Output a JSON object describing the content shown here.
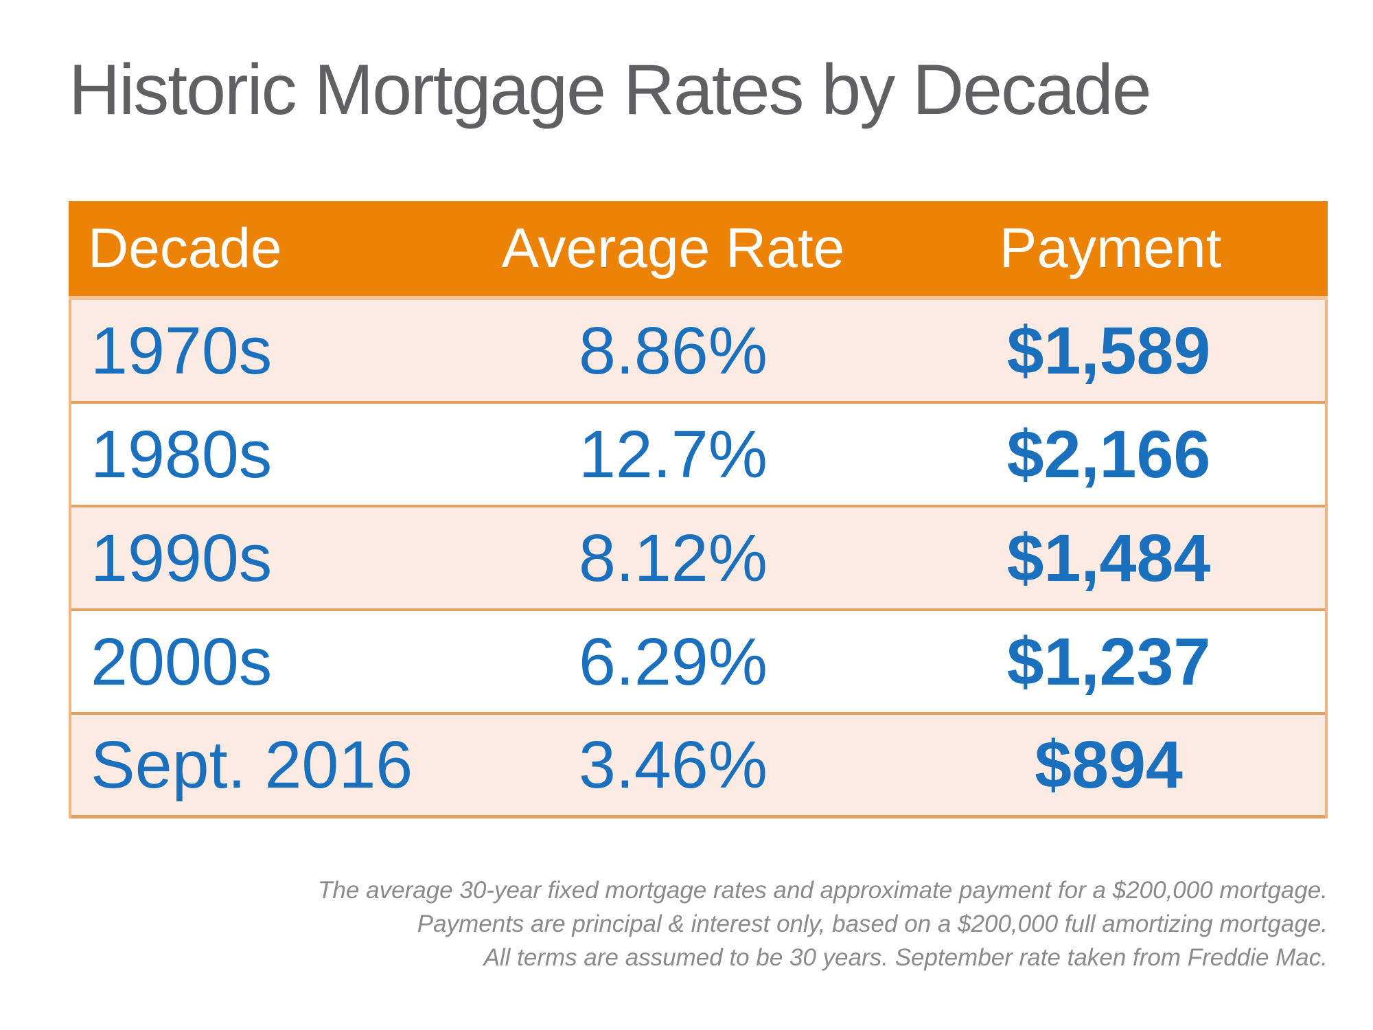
{
  "title": {
    "text": "Historic Mortgage Rates by Decade",
    "color": "#606062"
  },
  "table": {
    "columns": [
      "Decade",
      "Average Rate",
      "Payment"
    ],
    "rows": [
      {
        "decade": "1970s",
        "rate": "8.86%",
        "payment": "$1,589"
      },
      {
        "decade": "1980s",
        "rate": "12.7%",
        "payment": "$2,166"
      },
      {
        "decade": "1990s",
        "rate": "8.12%",
        "payment": "$1,484"
      },
      {
        "decade": "2000s",
        "rate": "6.29%",
        "payment": "$1,237"
      },
      {
        "decade": "Sept. 2016",
        "rate": "3.46%",
        "payment": "$894"
      }
    ],
    "colors": {
      "header_background": "#ED8306",
      "header_text": "#ffffff",
      "row_pink": "#FBEBE3",
      "row_white": "#ffffff",
      "row_divider": "#E3A063",
      "header_divider": "#F4C398",
      "side_border": "#F2B27E",
      "cell_text_blue": "#1B70BE"
    }
  },
  "footnote": {
    "lines": [
      "The average 30-year fixed mortgage rates and approximate payment for a $200,000 mortgage.",
      "Payments are principal & interest only, based on a $200,000 full amortizing mortgage.",
      "All terms are assumed to be 30 years. September rate taken from Freddie Mac."
    ],
    "color": "#8A8A8C"
  },
  "chart_data": {
    "type": "table",
    "title": "Historic Mortgage Rates by Decade",
    "columns": [
      "Decade",
      "Average Rate",
      "Payment"
    ],
    "rows": [
      [
        "1970s",
        "8.86%",
        "$1,589"
      ],
      [
        "1980s",
        "12.7%",
        "$2,166"
      ],
      [
        "1990s",
        "8.12%",
        "$1,484"
      ],
      [
        "2000s",
        "6.29%",
        "$1,237"
      ],
      [
        "Sept. 2016",
        "3.46%",
        "$894"
      ]
    ],
    "series": [
      {
        "name": "Average Rate (%)",
        "values": [
          8.86,
          12.7,
          8.12,
          6.29,
          3.46
        ]
      },
      {
        "name": "Payment ($)",
        "values": [
          1589,
          2166,
          1484,
          1237,
          894
        ]
      }
    ],
    "categories": [
      "1970s",
      "1980s",
      "1990s",
      "2000s",
      "Sept. 2016"
    ],
    "notes": [
      "The average 30-year fixed mortgage rates and approximate payment for a $200,000 mortgage.",
      "Payments are principal & interest only, based on a $200,000 full amortizing mortgage.",
      "All terms are assumed to be 30 years. September rate taken from Freddie Mac."
    ]
  }
}
